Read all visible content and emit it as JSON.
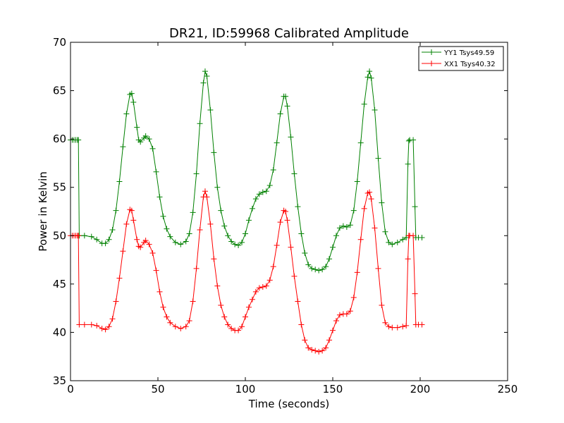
{
  "chart_data": {
    "type": "line",
    "title": "DR21, ID:59968 Calibrated Amplitude",
    "xlabel": "Time (seconds)",
    "ylabel": "Power in Kelvin",
    "xlim": [
      0,
      250
    ],
    "ylim": [
      35,
      70
    ],
    "xticks": [
      0,
      50,
      100,
      150,
      200,
      250
    ],
    "yticks": [
      35,
      40,
      45,
      50,
      55,
      60,
      65,
      70
    ],
    "grid": false,
    "legend_position": "top-right",
    "marker": "+",
    "series": [
      {
        "name": "YY1 Tsys49.59",
        "color": "#008000",
        "points": [
          [
            0,
            59.9
          ],
          [
            1,
            59.9
          ],
          [
            2,
            59.9
          ],
          [
            3,
            59.9
          ],
          [
            4,
            59.9
          ],
          [
            4.5,
            59.9
          ],
          [
            5,
            50.0
          ],
          [
            8,
            50.0
          ],
          [
            12,
            49.9
          ],
          [
            15,
            49.6
          ],
          [
            18,
            49.2
          ],
          [
            20,
            49.2
          ],
          [
            22,
            49.6
          ],
          [
            24,
            50.6
          ],
          [
            26,
            52.6
          ],
          [
            28,
            55.6
          ],
          [
            30,
            59.2
          ],
          [
            32,
            62.6
          ],
          [
            34,
            64.6
          ],
          [
            35,
            64.7
          ],
          [
            36,
            63.8
          ],
          [
            38,
            61.2
          ],
          [
            39,
            59.9
          ],
          [
            40,
            59.7
          ],
          [
            42,
            60.1
          ],
          [
            43,
            60.3
          ],
          [
            45,
            60.0
          ],
          [
            47,
            59.0
          ],
          [
            49,
            56.6
          ],
          [
            51,
            54.0
          ],
          [
            53,
            52.0
          ],
          [
            55,
            50.7
          ],
          [
            57,
            49.9
          ],
          [
            60,
            49.3
          ],
          [
            63,
            49.1
          ],
          [
            66,
            49.4
          ],
          [
            68,
            50.2
          ],
          [
            70,
            52.4
          ],
          [
            72,
            56.4
          ],
          [
            74,
            61.6
          ],
          [
            76,
            65.8
          ],
          [
            77,
            67.0
          ],
          [
            78,
            66.5
          ],
          [
            80,
            63.0
          ],
          [
            82,
            58.6
          ],
          [
            84,
            55.0
          ],
          [
            86,
            52.6
          ],
          [
            88,
            51.0
          ],
          [
            90,
            50.0
          ],
          [
            92,
            49.4
          ],
          [
            94,
            49.1
          ],
          [
            96,
            49.0
          ],
          [
            98,
            49.3
          ],
          [
            100,
            50.2
          ],
          [
            102,
            51.6
          ],
          [
            104,
            52.8
          ],
          [
            106,
            53.8
          ],
          [
            108,
            54.3
          ],
          [
            110,
            54.5
          ],
          [
            112,
            54.6
          ],
          [
            114,
            55.2
          ],
          [
            116,
            56.8
          ],
          [
            118,
            59.6
          ],
          [
            120,
            62.6
          ],
          [
            122,
            64.4
          ],
          [
            123,
            64.4
          ],
          [
            124,
            63.4
          ],
          [
            126,
            60.2
          ],
          [
            128,
            56.4
          ],
          [
            130,
            53.0
          ],
          [
            132,
            50.2
          ],
          [
            134,
            48.2
          ],
          [
            136,
            47.0
          ],
          [
            138,
            46.6
          ],
          [
            140,
            46.5
          ],
          [
            142,
            46.4
          ],
          [
            144,
            46.5
          ],
          [
            146,
            46.8
          ],
          [
            148,
            47.6
          ],
          [
            150,
            48.8
          ],
          [
            152,
            50.0
          ],
          [
            154,
            50.8
          ],
          [
            156,
            51.0
          ],
          [
            158,
            50.9
          ],
          [
            160,
            51.1
          ],
          [
            162,
            52.6
          ],
          [
            164,
            55.6
          ],
          [
            166,
            59.6
          ],
          [
            168,
            63.6
          ],
          [
            170,
            66.4
          ],
          [
            171,
            67.0
          ],
          [
            172,
            66.3
          ],
          [
            174,
            63.0
          ],
          [
            176,
            58.0
          ],
          [
            178,
            53.4
          ],
          [
            180,
            50.4
          ],
          [
            182,
            49.3
          ],
          [
            184,
            49.1
          ],
          [
            187,
            49.3
          ],
          [
            190,
            49.6
          ],
          [
            192,
            49.8
          ],
          [
            193,
            57.4
          ],
          [
            193.5,
            59.8
          ],
          [
            194,
            59.9
          ],
          [
            196,
            59.9
          ],
          [
            197,
            53.0
          ],
          [
            197.5,
            49.8
          ],
          [
            199,
            49.8
          ],
          [
            201,
            49.8
          ]
        ]
      },
      {
        "name": "XX1 Tsys40.32",
        "color": "#ff0000",
        "points": [
          [
            0,
            50.0
          ],
          [
            1,
            50.0
          ],
          [
            2,
            50.0
          ],
          [
            3,
            50.0
          ],
          [
            4,
            50.0
          ],
          [
            4.5,
            50.0
          ],
          [
            5,
            40.8
          ],
          [
            8,
            40.8
          ],
          [
            12,
            40.8
          ],
          [
            15,
            40.7
          ],
          [
            18,
            40.4
          ],
          [
            20,
            40.3
          ],
          [
            22,
            40.6
          ],
          [
            24,
            41.4
          ],
          [
            26,
            43.2
          ],
          [
            28,
            45.6
          ],
          [
            30,
            48.4
          ],
          [
            32,
            51.2
          ],
          [
            34,
            52.7
          ],
          [
            35,
            52.6
          ],
          [
            36,
            51.6
          ],
          [
            38,
            49.6
          ],
          [
            39,
            48.9
          ],
          [
            40,
            48.8
          ],
          [
            42,
            49.3
          ],
          [
            43,
            49.5
          ],
          [
            45,
            49.1
          ],
          [
            47,
            48.2
          ],
          [
            49,
            46.4
          ],
          [
            51,
            44.2
          ],
          [
            53,
            42.6
          ],
          [
            55,
            41.6
          ],
          [
            57,
            41.0
          ],
          [
            60,
            40.6
          ],
          [
            63,
            40.4
          ],
          [
            66,
            40.6
          ],
          [
            68,
            41.2
          ],
          [
            70,
            43.2
          ],
          [
            72,
            46.6
          ],
          [
            74,
            50.6
          ],
          [
            76,
            54.0
          ],
          [
            77,
            54.6
          ],
          [
            78,
            54.0
          ],
          [
            80,
            51.2
          ],
          [
            82,
            47.6
          ],
          [
            84,
            44.8
          ],
          [
            86,
            42.8
          ],
          [
            88,
            41.6
          ],
          [
            90,
            40.8
          ],
          [
            92,
            40.4
          ],
          [
            94,
            40.2
          ],
          [
            96,
            40.2
          ],
          [
            98,
            40.6
          ],
          [
            100,
            41.6
          ],
          [
            102,
            42.6
          ],
          [
            104,
            43.4
          ],
          [
            106,
            44.2
          ],
          [
            108,
            44.6
          ],
          [
            110,
            44.7
          ],
          [
            112,
            44.8
          ],
          [
            114,
            45.4
          ],
          [
            116,
            46.8
          ],
          [
            118,
            49.0
          ],
          [
            120,
            51.4
          ],
          [
            122,
            52.6
          ],
          [
            123,
            52.5
          ],
          [
            124,
            51.6
          ],
          [
            126,
            48.8
          ],
          [
            128,
            45.8
          ],
          [
            130,
            43.2
          ],
          [
            132,
            40.8
          ],
          [
            134,
            39.2
          ],
          [
            136,
            38.4
          ],
          [
            138,
            38.2
          ],
          [
            140,
            38.1
          ],
          [
            142,
            38.0
          ],
          [
            144,
            38.1
          ],
          [
            146,
            38.4
          ],
          [
            148,
            39.2
          ],
          [
            150,
            40.2
          ],
          [
            152,
            41.2
          ],
          [
            154,
            41.8
          ],
          [
            156,
            41.9
          ],
          [
            158,
            41.9
          ],
          [
            160,
            42.2
          ],
          [
            162,
            43.6
          ],
          [
            164,
            46.2
          ],
          [
            166,
            49.6
          ],
          [
            168,
            52.8
          ],
          [
            170,
            54.4
          ],
          [
            171,
            54.5
          ],
          [
            172,
            53.8
          ],
          [
            174,
            50.8
          ],
          [
            176,
            46.6
          ],
          [
            178,
            42.8
          ],
          [
            180,
            41.0
          ],
          [
            182,
            40.6
          ],
          [
            184,
            40.5
          ],
          [
            187,
            40.5
          ],
          [
            190,
            40.6
          ],
          [
            192,
            40.7
          ],
          [
            193,
            47.6
          ],
          [
            193.5,
            50.0
          ],
          [
            194,
            50.0
          ],
          [
            196,
            50.0
          ],
          [
            197,
            44.0
          ],
          [
            197.5,
            40.8
          ],
          [
            199,
            40.8
          ],
          [
            201,
            40.8
          ]
        ]
      }
    ]
  }
}
